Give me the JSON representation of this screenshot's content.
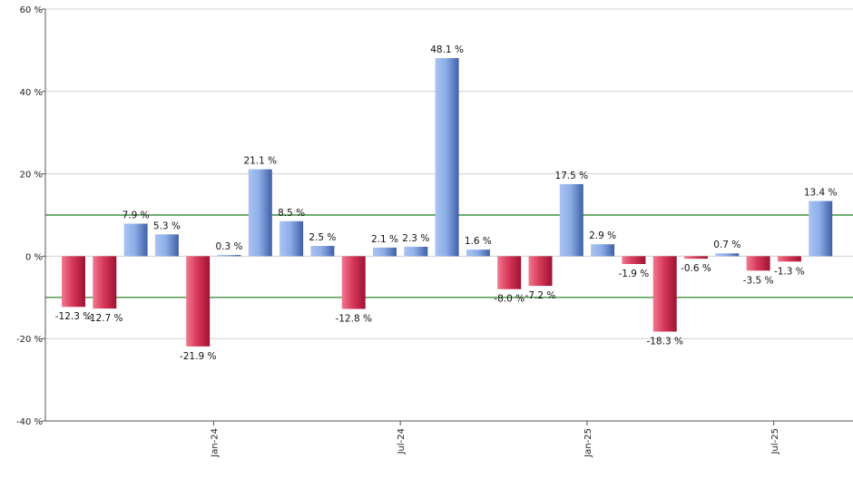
{
  "chart_data": {
    "type": "bar",
    "title": "",
    "xlabel": "",
    "ylabel": "",
    "ylim": [
      -40,
      60
    ],
    "yticks": [
      60,
      40,
      20,
      0,
      -20,
      -40
    ],
    "ytick_labels": [
      "60 %",
      "40 %",
      "20 %",
      "0 %",
      "-20 %",
      "-40 %"
    ],
    "grid": true,
    "unit_suffix": " %",
    "values": [
      -12.3,
      -12.7,
      7.9,
      5.3,
      -21.9,
      0.3,
      21.1,
      8.5,
      2.5,
      -12.8,
      2.1,
      2.3,
      48.1,
      1.6,
      -8.0,
      -7.2,
      17.5,
      2.9,
      -1.9,
      -18.3,
      -0.6,
      0.7,
      -3.5,
      -1.3,
      13.4
    ],
    "labels": [
      "-12.3 %",
      "-12.7 %",
      "7.9 %",
      "5.3 %",
      "-21.9 %",
      "0.3 %",
      "21.1 %",
      "8.5 %",
      "2.5 %",
      "-12.8 %",
      "2.1 %",
      "2.3 %",
      "48.1 %",
      "1.6 %",
      "-8.0 %",
      "-7.2 %",
      "17.5 %",
      "2.9 %",
      "-1.9 %",
      "-18.3 %",
      "-0.6 %",
      "0.7 %",
      "-3.5 %",
      "-1.3 %",
      "13.4 %"
    ],
    "x_ticks": [
      {
        "label": "Jan-24",
        "index": 4.5
      },
      {
        "label": "Jul-24",
        "index": 10.5
      },
      {
        "label": "Jan-25",
        "index": 16.5
      },
      {
        "label": "Jul-25",
        "index": 22.5
      }
    ],
    "reference_lines": [
      10,
      -10
    ],
    "colors": {
      "positive_light": "#a9c4f2",
      "positive_dark": "#3f5fa8",
      "negative_light": "#f07a90",
      "negative_dark": "#b0163a",
      "reference_line": "#1a7a1a",
      "grid": "#cfcfcf",
      "axis": "#555555"
    }
  }
}
